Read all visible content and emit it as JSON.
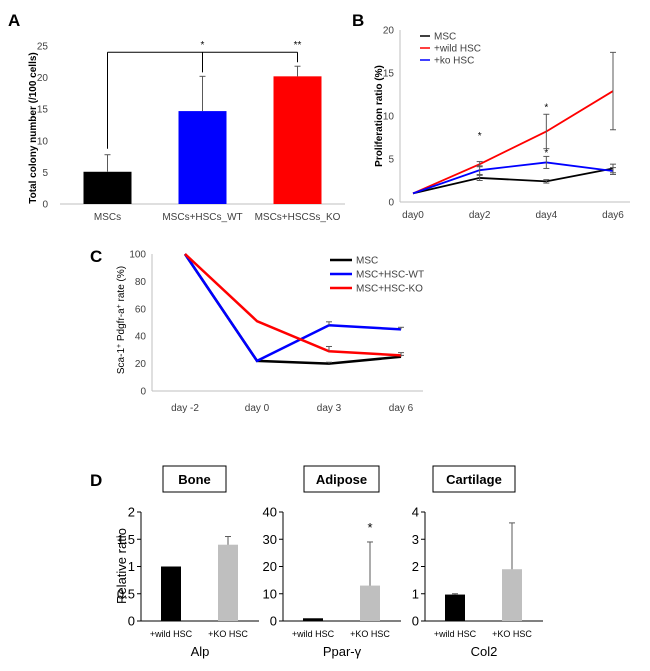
{
  "chart_data": [
    {
      "panel": "A",
      "type": "bar",
      "ylabel": "Total colony number (/100 cells)",
      "ylim": [
        0,
        25
      ],
      "yticks": [
        0,
        5,
        10,
        15,
        20,
        25
      ],
      "categories": [
        "MSCs",
        "MSCs+HSCs_WT",
        "MSCs+HSCSs_KO"
      ],
      "values": [
        5.1,
        14.7,
        20.2
      ],
      "errors": [
        2.7,
        5.5,
        1.6
      ],
      "colors": [
        "#000000",
        "#0000FF",
        "#FF0000"
      ],
      "significance": [
        {
          "label": "*",
          "from": 0,
          "to": 1
        },
        {
          "label": "**",
          "from": 0,
          "to": 2
        }
      ]
    },
    {
      "panel": "B",
      "type": "line",
      "ylabel": "Proliferation ratio (%)",
      "ylim": [
        0,
        20
      ],
      "yticks": [
        0,
        5,
        10,
        15,
        20
      ],
      "x": [
        "day0",
        "day2",
        "day4",
        "day6"
      ],
      "legend_position": "top-left",
      "series": [
        {
          "name": "MSC",
          "color": "#000000",
          "values": [
            1.0,
            2.8,
            2.4,
            3.9
          ],
          "errors": [
            0,
            0.3,
            0.2,
            0.5
          ]
        },
        {
          "name": "+wild HSC",
          "color": "#FF0000",
          "values": [
            1.0,
            4.4,
            8.2,
            12.9
          ],
          "errors": [
            0,
            0.3,
            2.0,
            4.5
          ]
        },
        {
          "name": "+ko HSC",
          "color": "#0000FF",
          "values": [
            1.0,
            3.7,
            4.6,
            3.6
          ],
          "errors": [
            0,
            0.5,
            0.7,
            0.4
          ]
        }
      ],
      "annotations": [
        {
          "label": "*",
          "x": "day2",
          "y": 7.7
        },
        {
          "label": "*",
          "x": "day4",
          "y": 11.0
        },
        {
          "label": "*",
          "x": "day4",
          "y": 5.7
        }
      ]
    },
    {
      "panel": "C",
      "type": "line",
      "ylabel_main": "Sca-1",
      "ylabel_sup1": "+",
      "ylabel_mid": " Pdgfr-a",
      "ylabel_sup2": "+",
      "ylabel_end": " rate (%)",
      "ylim": [
        0,
        100
      ],
      "yticks": [
        0,
        20,
        40,
        60,
        80,
        100
      ],
      "x": [
        "day -2",
        "day 0",
        "day 3",
        "day 6"
      ],
      "legend_position": "top-right",
      "series": [
        {
          "name": "MSC",
          "color": "#000000",
          "values": [
            100,
            22,
            20,
            25
          ],
          "errors": [
            0,
            0,
            1,
            1
          ]
        },
        {
          "name": "MSC+HSC-WT",
          "color": "#0000FF",
          "values": [
            100,
            22,
            48,
            45
          ],
          "errors": [
            0,
            0,
            2.5,
            1.5
          ]
        },
        {
          "name": "MSC+HSC-KO",
          "color": "#FF0000",
          "values": [
            100,
            51,
            29,
            26
          ],
          "errors": [
            0,
            0,
            3.5,
            2
          ]
        }
      ]
    },
    {
      "panel": "D",
      "type": "bar",
      "ylabel": "Relative ratio",
      "subplots": [
        {
          "title": "Bone",
          "gene": "Alp",
          "ylim": [
            0,
            2
          ],
          "yticks": [
            "0",
            "0.5",
            "1",
            "1.5",
            "2"
          ],
          "ytick_values": [
            0,
            0.5,
            1,
            1.5,
            2
          ],
          "categories": [
            "+wild HSC",
            "+KO HSC"
          ],
          "values": [
            1.0,
            1.4
          ],
          "errors": [
            0,
            0.15
          ],
          "colors": [
            "#000000",
            "#BFBFBF"
          ],
          "significance": ""
        },
        {
          "title": "Adipose",
          "gene": "Ppar-γ",
          "ylim": [
            0,
            40
          ],
          "yticks": [
            "0",
            "10",
            "20",
            "30",
            "40"
          ],
          "ytick_values": [
            0,
            10,
            20,
            30,
            40
          ],
          "categories": [
            "+wild HSC",
            "+KO HSC"
          ],
          "values": [
            1.0,
            13.0
          ],
          "errors": [
            0,
            16.0
          ],
          "colors": [
            "#000000",
            "#BFBFBF"
          ],
          "significance": "*"
        },
        {
          "title": "Cartilage",
          "gene": "Col2",
          "ylim": [
            0,
            4
          ],
          "yticks": [
            "0",
            "1",
            "2",
            "3",
            "4"
          ],
          "ytick_values": [
            0,
            1,
            2,
            3,
            4
          ],
          "categories": [
            "+wild HSC",
            "+KO HSC"
          ],
          "values": [
            0.97,
            1.9
          ],
          "errors": [
            0.03,
            1.7
          ],
          "colors": [
            "#000000",
            "#BFBFBF"
          ],
          "significance": ""
        }
      ]
    }
  ],
  "panel_letters": [
    "A",
    "B",
    "C",
    "D"
  ]
}
